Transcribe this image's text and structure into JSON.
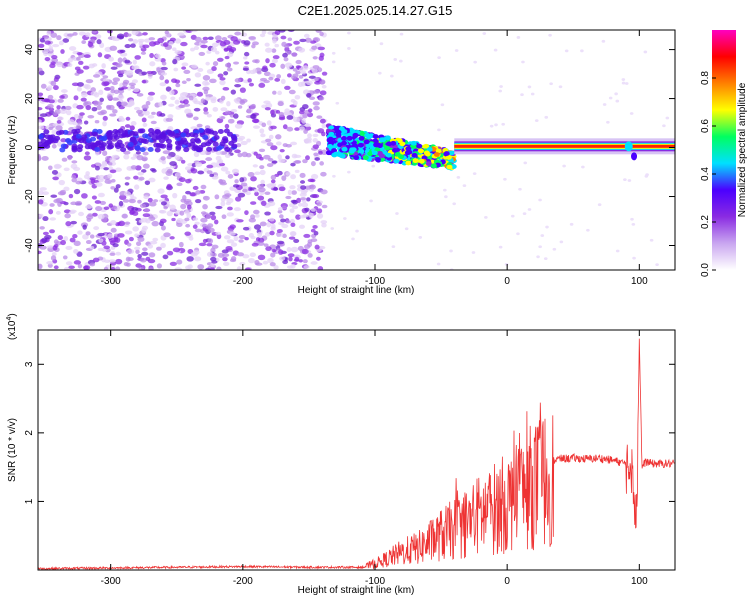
{
  "title": "C2E1.2025.025.14.27.G15",
  "chart_data": [
    {
      "type": "heatmap",
      "xlabel": "Height of straight line (km)",
      "ylabel": "Frequency (Hz)",
      "xlim": [
        -355,
        127
      ],
      "ylim": [
        -50,
        48
      ],
      "xticks": [
        -300,
        -200,
        -100,
        0,
        100
      ],
      "xtick_labels": [
        "-300",
        "-200",
        "-100",
        "0",
        "100"
      ],
      "yticks": [
        -40,
        -20,
        0,
        20,
        40
      ],
      "ytick_labels": [
        "-40",
        "-20",
        "0",
        "20",
        "40"
      ],
      "colorbar": {
        "label": "Normalized spectral amplitude",
        "range": [
          0,
          1
        ],
        "ticks": [
          0.0,
          0.2,
          0.4,
          0.6,
          0.8
        ],
        "tick_labels": [
          "0.0",
          "0.2",
          "0.4",
          "0.6",
          "0.8"
        ],
        "colors": [
          "#ffffff",
          "#c9a6f0",
          "#8a2be2",
          "#4b00ff",
          "#00e0ff",
          "#00ff60",
          "#ffff00",
          "#ff8000",
          "#ff0000",
          "#ff00c0"
        ]
      },
      "regions": [
        {
          "x": [
            -355,
            -138
          ],
          "y": [
            -50,
            48
          ],
          "description": "diffuse noise",
          "amplitude": 0.1
        },
        {
          "x": [
            -135,
            -40
          ],
          "center_freq": [
            3,
            -5
          ],
          "amplitude": 0.45
        },
        {
          "x": [
            -40,
            127
          ],
          "center_freq": 0.5,
          "amplitude": 0.95
        }
      ]
    },
    {
      "type": "line",
      "xlabel": "Height of straight line (km)",
      "ylabel": "SNR (10 * v/v)",
      "y_multiplier": "(x10",
      "y_multiplier_exp": "4",
      "y_multiplier_close": ")",
      "xlim": [
        -355,
        127
      ],
      "ylim": [
        0,
        3.5
      ],
      "xticks": [
        -300,
        -200,
        -100,
        0,
        100
      ],
      "xtick_labels": [
        "-300",
        "-200",
        "-100",
        "0",
        "100"
      ],
      "yticks": [
        1,
        2,
        3
      ],
      "ytick_labels": [
        "1",
        "2",
        "3"
      ],
      "color": "#ee3333",
      "series": [
        {
          "x": [
            -355,
            -300,
            -250,
            -200,
            -150,
            -110,
            -95,
            -80,
            -65,
            -50,
            -35,
            -20,
            -10,
            0,
            5,
            10,
            20,
            30,
            40,
            50,
            60,
            70,
            80,
            90,
            95,
            98,
            100,
            102,
            105,
            110,
            120,
            127
          ],
          "y": [
            0.02,
            0.03,
            0.04,
            0.05,
            0.04,
            0.04,
            0.15,
            0.3,
            0.4,
            0.6,
            0.75,
            0.95,
            1.05,
            1.15,
            1.2,
            1.3,
            1.45,
            1.58,
            1.62,
            1.63,
            1.62,
            1.63,
            1.6,
            1.55,
            1.5,
            0.7,
            3.4,
            1.5,
            1.58,
            1.55,
            1.55,
            1.55
          ]
        }
      ]
    }
  ]
}
